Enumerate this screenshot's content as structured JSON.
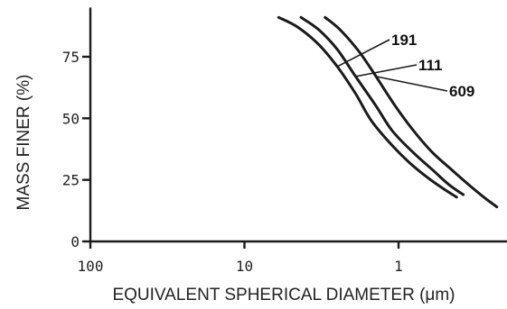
{
  "chart_data": {
    "type": "line",
    "xlabel": "EQUIVALENT SPHERICAL DIAMETER (μm)",
    "ylabel": "MASS FINER (%)",
    "x_scale": "log",
    "x_reversed": true,
    "xlim": [
      100,
      0.2
    ],
    "ylim": [
      0,
      95
    ],
    "x_ticks": [
      {
        "value": 100,
        "label": "100"
      },
      {
        "value": 10,
        "label": "10"
      },
      {
        "value": 1,
        "label": "1"
      }
    ],
    "y_ticks": [
      {
        "value": 0,
        "label": "0"
      },
      {
        "value": 25,
        "label": "25"
      },
      {
        "value": 50,
        "label": "50"
      },
      {
        "value": 75,
        "label": "75"
      }
    ],
    "grid": false,
    "series": [
      {
        "name": "191",
        "x": [
          6.0,
          4.5,
          3.3,
          2.5,
          1.9,
          1.5,
          1.1,
          0.85,
          0.65,
          0.5,
          0.42
        ],
        "y": [
          91,
          87,
          80,
          71,
          60,
          49,
          39,
          32,
          26,
          21,
          18
        ]
      },
      {
        "name": "111",
        "x": [
          4.3,
          3.3,
          2.5,
          1.9,
          1.4,
          1.1,
          0.8,
          0.6,
          0.47,
          0.38
        ],
        "y": [
          91,
          86,
          78,
          67,
          55,
          45,
          36,
          29,
          23,
          19
        ]
      },
      {
        "name": "609",
        "x": [
          3.0,
          2.4,
          1.8,
          1.4,
          1.05,
          0.8,
          0.6,
          0.45,
          0.35,
          0.28,
          0.23
        ],
        "y": [
          91,
          86,
          77,
          67,
          55,
          45,
          36,
          29,
          23,
          18,
          14
        ]
      }
    ],
    "annotations": [
      "191",
      "111",
      "609"
    ]
  }
}
